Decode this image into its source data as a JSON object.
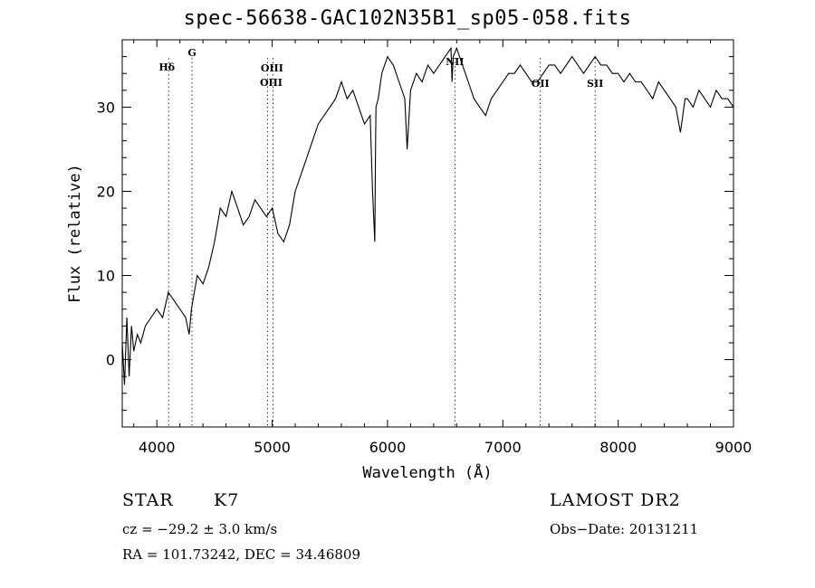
{
  "chart_data": {
    "type": "line",
    "title": "spec-56638-GAC102N35B1_sp05-058.fits",
    "xlabel": "Wavelength (Å)",
    "ylabel": "Flux (relative)",
    "xlim": [
      3700,
      9000
    ],
    "ylim": [
      -8,
      38
    ],
    "xticks": [
      4000,
      5000,
      6000,
      7000,
      8000,
      9000
    ],
    "yticks": [
      0,
      10,
      20,
      30
    ],
    "grid": false,
    "lines": [
      {
        "label": "Hδ",
        "x": 4102
      },
      {
        "label": "G",
        "x": 4305
      },
      {
        "label": "OIII",
        "x": 4959
      },
      {
        "label": "OIII",
        "x": 5007
      },
      {
        "label": "NII",
        "x": 6584
      },
      {
        "label": "OII",
        "x": 7325
      },
      {
        "label": "SII",
        "x": 7800
      }
    ],
    "series": [
      {
        "x": [
          3700,
          3720,
          3740,
          3760,
          3780,
          3800,
          3830,
          3860,
          3900,
          3950,
          4000,
          4050,
          4100,
          4150,
          4200,
          4250,
          4280,
          4300,
          4350,
          4400,
          4450,
          4500,
          4550,
          4600,
          4650,
          4700,
          4750,
          4800,
          4850,
          4900,
          4950,
          5000,
          5050,
          5100,
          5150,
          5200,
          5250,
          5300,
          5350,
          5400,
          5450,
          5500,
          5550,
          5600,
          5650,
          5700,
          5750,
          5800,
          5850,
          5870,
          5890,
          5895,
          5900,
          5920,
          5950,
          6000,
          6050,
          6100,
          6150,
          6170,
          6200,
          6250,
          6300,
          6350,
          6400,
          6450,
          6500,
          6550,
          6560,
          6570,
          6600,
          6650,
          6700,
          6750,
          6800,
          6850,
          6900,
          6950,
          7000,
          7050,
          7100,
          7150,
          7200,
          7250,
          7300,
          7350,
          7400,
          7450,
          7500,
          7550,
          7600,
          7650,
          7700,
          7750,
          7800,
          7850,
          7900,
          7950,
          8000,
          8050,
          8100,
          8150,
          8200,
          8250,
          8300,
          8350,
          8400,
          8450,
          8500,
          8540,
          8560,
          8580,
          8600,
          8650,
          8700,
          8750,
          8800,
          8850,
          8900,
          8950,
          9000
        ],
        "y": [
          2,
          -3,
          5,
          -2,
          4,
          1,
          3,
          2,
          4,
          5,
          6,
          5,
          8,
          7,
          6,
          5,
          3,
          6,
          10,
          9,
          11,
          14,
          18,
          17,
          20,
          18,
          16,
          17,
          19,
          18,
          17,
          18,
          15,
          14,
          16,
          20,
          22,
          24,
          26,
          28,
          29,
          30,
          31,
          33,
          31,
          32,
          30,
          28,
          29,
          20,
          14,
          24,
          30,
          31,
          34,
          36,
          35,
          33,
          31,
          25,
          32,
          34,
          33,
          35,
          34,
          35,
          36,
          37,
          33,
          36,
          37,
          35,
          33,
          31,
          30,
          29,
          31,
          32,
          33,
          34,
          34,
          35,
          34,
          33,
          33,
          34,
          35,
          35,
          34,
          35,
          36,
          35,
          34,
          35,
          36,
          35,
          35,
          34,
          34,
          33,
          34,
          33,
          33,
          32,
          31,
          33,
          32,
          31,
          30,
          27,
          29,
          31,
          31,
          30,
          32,
          31,
          30,
          32,
          31,
          31,
          30
        ]
      }
    ]
  },
  "info": {
    "class": "STAR",
    "subclass": "K7",
    "survey": "LAMOST DR2",
    "cz": "cz = −29.2 ± 3.0 km/s",
    "obs_date": "Obs−Date: 20131211",
    "coords": "RA = 101.73242, DEC =  34.46809"
  }
}
